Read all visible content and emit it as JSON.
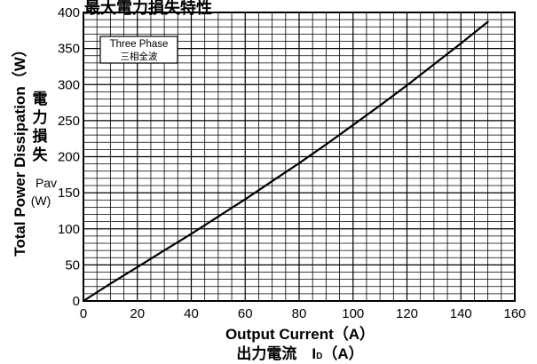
{
  "chart_data": {
    "type": "line",
    "title": "最大電力損失特性",
    "xlabel": "Output Current（A）",
    "xlabel_jp": "出力電流　I",
    "xlabel_sub": "D",
    "xlabel_unit": "（A）",
    "ylabel": "Total Power Dissipation（W）",
    "ylabel_jp": [
      "電",
      "力",
      "損",
      "失"
    ],
    "ylabel_sym": "Pav",
    "ylabel_unit": "(W)",
    "annotation": [
      "Three Phase",
      "三相全波"
    ],
    "xlim": [
      0,
      160
    ],
    "ylim": [
      0,
      400
    ],
    "xticks": [
      "0",
      "20",
      "40",
      "60",
      "80",
      "100",
      "120",
      "140",
      "160"
    ],
    "yticks": [
      "0",
      "50",
      "100",
      "150",
      "200",
      "250",
      "300",
      "350",
      "400"
    ],
    "grid": true,
    "series": [
      {
        "x": [
          0,
          10,
          20,
          30,
          40,
          50,
          60,
          70,
          80,
          90,
          100,
          110,
          120,
          130,
          140,
          150
        ],
        "y": [
          0,
          24,
          47,
          70,
          93,
          117,
          141,
          166,
          191,
          217,
          244,
          271,
          299,
          328,
          357,
          387
        ]
      }
    ]
  }
}
